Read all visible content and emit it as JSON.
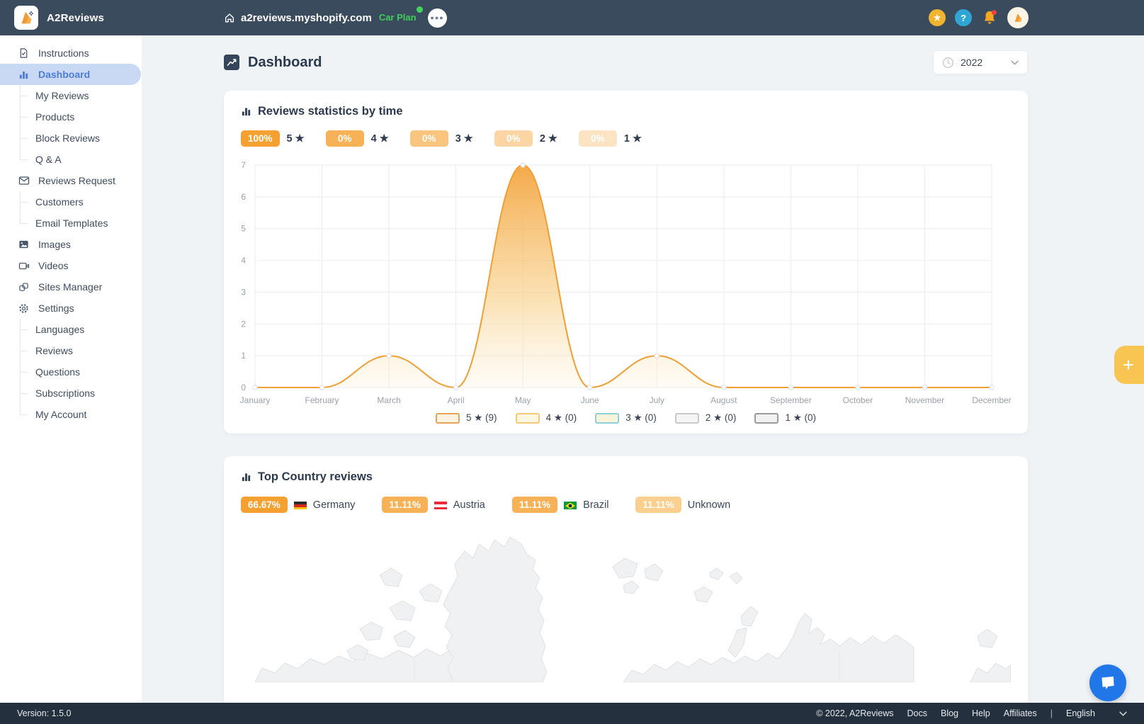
{
  "topbar": {
    "app_name": "A2Reviews",
    "shop_domain": "a2reviews.myshopify.com",
    "plan_label": "Car Plan",
    "more_label": "●●●"
  },
  "icons": {
    "star_glyph": "★",
    "help_glyph": "?",
    "plus_glyph": "+"
  },
  "sidebar": {
    "items": [
      {
        "label": "Instructions",
        "icon": "file-check-icon",
        "level": 0,
        "active": false
      },
      {
        "label": "Dashboard",
        "icon": "bar-chart-icon",
        "level": 0,
        "active": true
      },
      {
        "label": "My Reviews",
        "level": 1
      },
      {
        "label": "Products",
        "level": 1
      },
      {
        "label": "Block Reviews",
        "level": 1
      },
      {
        "label": "Q & A",
        "level": 1
      },
      {
        "label": "Reviews Request",
        "icon": "mail-icon",
        "level": 0,
        "active": false
      },
      {
        "label": "Customers",
        "level": 1
      },
      {
        "label": "Email Templates",
        "level": 1
      },
      {
        "label": "Images",
        "icon": "image-icon",
        "level": 0,
        "active": false
      },
      {
        "label": "Videos",
        "icon": "video-icon",
        "level": 0,
        "active": false
      },
      {
        "label": "Sites Manager",
        "icon": "sites-icon",
        "level": 0,
        "active": false
      },
      {
        "label": "Settings",
        "icon": "gear-icon",
        "level": 0,
        "active": false
      },
      {
        "label": "Languages",
        "level": 1
      },
      {
        "label": "Reviews",
        "level": 1
      },
      {
        "label": "Questions",
        "level": 1
      },
      {
        "label": "Subscriptions",
        "level": 1
      },
      {
        "label": "My Account",
        "level": 1
      }
    ]
  },
  "header": {
    "title": "Dashboard",
    "year": "2022"
  },
  "stats_card": {
    "title": "Reviews statistics by time",
    "rating_badges": [
      {
        "percent": "100%",
        "label": "5 ★",
        "color": "#f5a132"
      },
      {
        "percent": "0%",
        "label": "4 ★",
        "color": "#f7b257"
      },
      {
        "percent": "0%",
        "label": "3 ★",
        "color": "#f9c47e"
      },
      {
        "percent": "0%",
        "label": "2 ★",
        "color": "#fbd5a4"
      },
      {
        "percent": "0%",
        "label": "1 ★",
        "color": "#fce3c2"
      }
    ],
    "legend": [
      {
        "label": "5 ★ (9)",
        "fill": "#fdf3e1",
        "border": "#e5a557"
      },
      {
        "label": "4 ★ (0)",
        "fill": "#fdf6e0",
        "border": "#f2cb7a"
      },
      {
        "label": "3 ★ (0)",
        "fill": "#faf4da",
        "border": "#8fd0d8"
      },
      {
        "label": "2 ★ (0)",
        "fill": "#f5f5f5",
        "border": "#c9c9c9"
      },
      {
        "label": "1 ★ (0)",
        "fill": "#f1f1f1",
        "border": "#9a9a9a"
      }
    ]
  },
  "chart_data": {
    "type": "area",
    "title": "Reviews statistics by time",
    "x": [
      "January",
      "February",
      "March",
      "April",
      "May",
      "June",
      "July",
      "August",
      "September",
      "October",
      "November",
      "December"
    ],
    "series": [
      {
        "name": "5 ★",
        "values": [
          0,
          0,
          1,
          0,
          7,
          0,
          1,
          0,
          0,
          0,
          0,
          0
        ]
      }
    ],
    "ylim": [
      0,
      7
    ],
    "yticks": [
      0,
      1,
      2,
      3,
      4,
      5,
      6,
      7
    ],
    "grid": true,
    "legend_position": "bottom",
    "line_color": "#ef9f35"
  },
  "country_card": {
    "title": "Top Country reviews",
    "countries": [
      {
        "percent": "66.67%",
        "name": "Germany",
        "flag": "germany",
        "color": "#f5a132"
      },
      {
        "percent": "11.11%",
        "name": "Austria",
        "flag": "austria",
        "color": "#f7b257"
      },
      {
        "percent": "11.11%",
        "name": "Brazil",
        "flag": "brazil",
        "color": "#f7b257"
      },
      {
        "percent": "11.11%",
        "name": "Unknown",
        "flag": "",
        "color": "#fbcf8e"
      }
    ]
  },
  "footer": {
    "version": "Version: 1.5.0",
    "copyright": "© 2022, A2Reviews",
    "links": [
      "Docs",
      "Blog",
      "Help",
      "Affiliates"
    ],
    "divider": "|",
    "language": "English"
  },
  "colors": {
    "topbar_bg": "#3b4b5e",
    "footer_bg": "#25303e",
    "accent_orange": "#f5a132",
    "plan_green": "#3ece5a",
    "selected_nav_bg": "#c9d9f4",
    "selected_nav_text": "#4d7cd8",
    "chat_blue": "#2176e8",
    "fab_yellow": "#f8c452"
  }
}
